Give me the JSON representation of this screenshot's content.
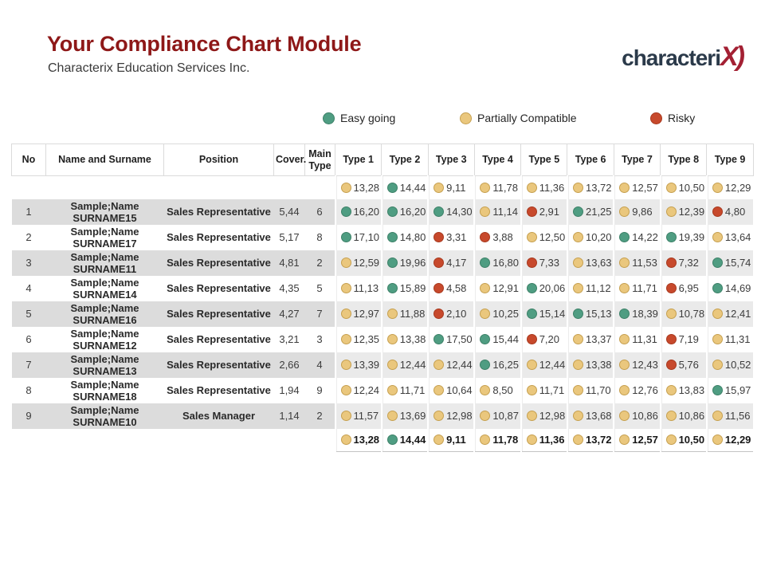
{
  "header": {
    "title": "Your Compliance Chart Module",
    "subtitle": "Characterix Education Services Inc.",
    "logo_text": "characteri",
    "logo_accent": "X)"
  },
  "legend": [
    {
      "status": "easy",
      "label": "Easy going"
    },
    {
      "status": "partial",
      "label": "Partially Compatible"
    },
    {
      "status": "risky",
      "label": "Risky"
    }
  ],
  "status_colors": {
    "easy": {
      "fill": "#4f9d82",
      "stroke": "#3d английского"
    },
    "partial": {
      "fill": "#eac77d",
      "stroke": "#c6a050"
    },
    "risky": {
      "fill": "#c7492c",
      "stroke": "#a8391e"
    }
  },
  "table": {
    "columns": [
      "No",
      "Name and Surname",
      "Position",
      "Cover.",
      "Main Type",
      "Type 1",
      "Type 2",
      "Type 3",
      "Type 4",
      "Type 5",
      "Type 6",
      "Type 7",
      "Type 8",
      "Type 9"
    ],
    "average_row": {
      "types": [
        {
          "v": "13,28",
          "s": "partial"
        },
        {
          "v": "14,44",
          "s": "easy"
        },
        {
          "v": "9,11",
          "s": "partial"
        },
        {
          "v": "11,78",
          "s": "partial"
        },
        {
          "v": "11,36",
          "s": "partial"
        },
        {
          "v": "13,72",
          "s": "partial"
        },
        {
          "v": "12,57",
          "s": "partial"
        },
        {
          "v": "10,50",
          "s": "partial"
        },
        {
          "v": "12,29",
          "s": "partial"
        }
      ]
    },
    "rows": [
      {
        "no": "1",
        "name": "Sample;Name SURNAME15",
        "position": "Sales Representative",
        "cover": "5,44",
        "main_type": "6",
        "types": [
          {
            "v": "16,20",
            "s": "easy"
          },
          {
            "v": "16,20",
            "s": "easy"
          },
          {
            "v": "14,30",
            "s": "easy"
          },
          {
            "v": "11,14",
            "s": "partial"
          },
          {
            "v": "2,91",
            "s": "risky"
          },
          {
            "v": "21,25",
            "s": "easy"
          },
          {
            "v": "9,86",
            "s": "partial"
          },
          {
            "v": "12,39",
            "s": "partial"
          },
          {
            "v": "4,80",
            "s": "risky"
          }
        ]
      },
      {
        "no": "2",
        "name": "Sample;Name SURNAME17",
        "position": "Sales Representative",
        "cover": "5,17",
        "main_type": "8",
        "types": [
          {
            "v": "17,10",
            "s": "easy"
          },
          {
            "v": "14,80",
            "s": "easy"
          },
          {
            "v": "3,31",
            "s": "risky"
          },
          {
            "v": "3,88",
            "s": "risky"
          },
          {
            "v": "12,50",
            "s": "partial"
          },
          {
            "v": "10,20",
            "s": "partial"
          },
          {
            "v": "14,22",
            "s": "easy"
          },
          {
            "v": "19,39",
            "s": "easy"
          },
          {
            "v": "13,64",
            "s": "partial"
          }
        ]
      },
      {
        "no": "3",
        "name": "Sample;Name SURNAME11",
        "position": "Sales Representative",
        "cover": "4,81",
        "main_type": "2",
        "types": [
          {
            "v": "12,59",
            "s": "partial"
          },
          {
            "v": "19,96",
            "s": "easy"
          },
          {
            "v": "4,17",
            "s": "risky"
          },
          {
            "v": "16,80",
            "s": "easy"
          },
          {
            "v": "7,33",
            "s": "risky"
          },
          {
            "v": "13,63",
            "s": "partial"
          },
          {
            "v": "11,53",
            "s": "partial"
          },
          {
            "v": "7,32",
            "s": "risky"
          },
          {
            "v": "15,74",
            "s": "easy"
          }
        ]
      },
      {
        "no": "4",
        "name": "Sample;Name SURNAME14",
        "position": "Sales Representative",
        "cover": "4,35",
        "main_type": "5",
        "types": [
          {
            "v": "11,13",
            "s": "partial"
          },
          {
            "v": "15,89",
            "s": "easy"
          },
          {
            "v": "4,58",
            "s": "risky"
          },
          {
            "v": "12,91",
            "s": "partial"
          },
          {
            "v": "20,06",
            "s": "easy"
          },
          {
            "v": "11,12",
            "s": "partial"
          },
          {
            "v": "11,71",
            "s": "partial"
          },
          {
            "v": "6,95",
            "s": "risky"
          },
          {
            "v": "14,69",
            "s": "easy"
          }
        ]
      },
      {
        "no": "5",
        "name": "Sample;Name SURNAME16",
        "position": "Sales Representative",
        "cover": "4,27",
        "main_type": "7",
        "types": [
          {
            "v": "12,97",
            "s": "partial"
          },
          {
            "v": "11,88",
            "s": "partial"
          },
          {
            "v": "2,10",
            "s": "risky"
          },
          {
            "v": "10,25",
            "s": "partial"
          },
          {
            "v": "15,14",
            "s": "easy"
          },
          {
            "v": "15,13",
            "s": "easy"
          },
          {
            "v": "18,39",
            "s": "easy"
          },
          {
            "v": "10,78",
            "s": "partial"
          },
          {
            "v": "12,41",
            "s": "partial"
          }
        ]
      },
      {
        "no": "6",
        "name": "Sample;Name SURNAME12",
        "position": "Sales Representative",
        "cover": "3,21",
        "main_type": "3",
        "types": [
          {
            "v": "12,35",
            "s": "partial"
          },
          {
            "v": "13,38",
            "s": "partial"
          },
          {
            "v": "17,50",
            "s": "easy"
          },
          {
            "v": "15,44",
            "s": "easy"
          },
          {
            "v": "7,20",
            "s": "risky"
          },
          {
            "v": "13,37",
            "s": "partial"
          },
          {
            "v": "11,31",
            "s": "partial"
          },
          {
            "v": "7,19",
            "s": "risky"
          },
          {
            "v": "11,31",
            "s": "partial"
          }
        ]
      },
      {
        "no": "7",
        "name": "Sample;Name SURNAME13",
        "position": "Sales Representative",
        "cover": "2,66",
        "main_type": "4",
        "types": [
          {
            "v": "13,39",
            "s": "partial"
          },
          {
            "v": "12,44",
            "s": "partial"
          },
          {
            "v": "12,44",
            "s": "partial"
          },
          {
            "v": "16,25",
            "s": "easy"
          },
          {
            "v": "12,44",
            "s": "partial"
          },
          {
            "v": "13,38",
            "s": "partial"
          },
          {
            "v": "12,43",
            "s": "partial"
          },
          {
            "v": "5,76",
            "s": "risky"
          },
          {
            "v": "10,52",
            "s": "partial"
          }
        ]
      },
      {
        "no": "8",
        "name": "Sample;Name SURNAME18",
        "position": "Sales Representative",
        "cover": "1,94",
        "main_type": "9",
        "types": [
          {
            "v": "12,24",
            "s": "partial"
          },
          {
            "v": "11,71",
            "s": "partial"
          },
          {
            "v": "10,64",
            "s": "partial"
          },
          {
            "v": "8,50",
            "s": "partial"
          },
          {
            "v": "11,71",
            "s": "partial"
          },
          {
            "v": "11,70",
            "s": "partial"
          },
          {
            "v": "12,76",
            "s": "partial"
          },
          {
            "v": "13,83",
            "s": "partial"
          },
          {
            "v": "15,97",
            "s": "easy"
          }
        ]
      },
      {
        "no": "9",
        "name": "Sample;Name SURNAME10",
        "position": "Sales Manager",
        "cover": "1,14",
        "main_type": "2",
        "types": [
          {
            "v": "11,57",
            "s": "partial"
          },
          {
            "v": "13,69",
            "s": "partial"
          },
          {
            "v": "12,98",
            "s": "partial"
          },
          {
            "v": "10,87",
            "s": "partial"
          },
          {
            "v": "12,98",
            "s": "partial"
          },
          {
            "v": "13,68",
            "s": "partial"
          },
          {
            "v": "10,86",
            "s": "partial"
          },
          {
            "v": "10,86",
            "s": "partial"
          },
          {
            "v": "11,56",
            "s": "partial"
          }
        ]
      }
    ],
    "total_row": {
      "types": [
        {
          "v": "13,28",
          "s": "partial"
        },
        {
          "v": "14,44",
          "s": "easy"
        },
        {
          "v": "9,11",
          "s": "partial"
        },
        {
          "v": "11,78",
          "s": "partial"
        },
        {
          "v": "11,36",
          "s": "partial"
        },
        {
          "v": "13,72",
          "s": "partial"
        },
        {
          "v": "12,57",
          "s": "partial"
        },
        {
          "v": "10,50",
          "s": "partial"
        },
        {
          "v": "12,29",
          "s": "partial"
        }
      ]
    }
  }
}
